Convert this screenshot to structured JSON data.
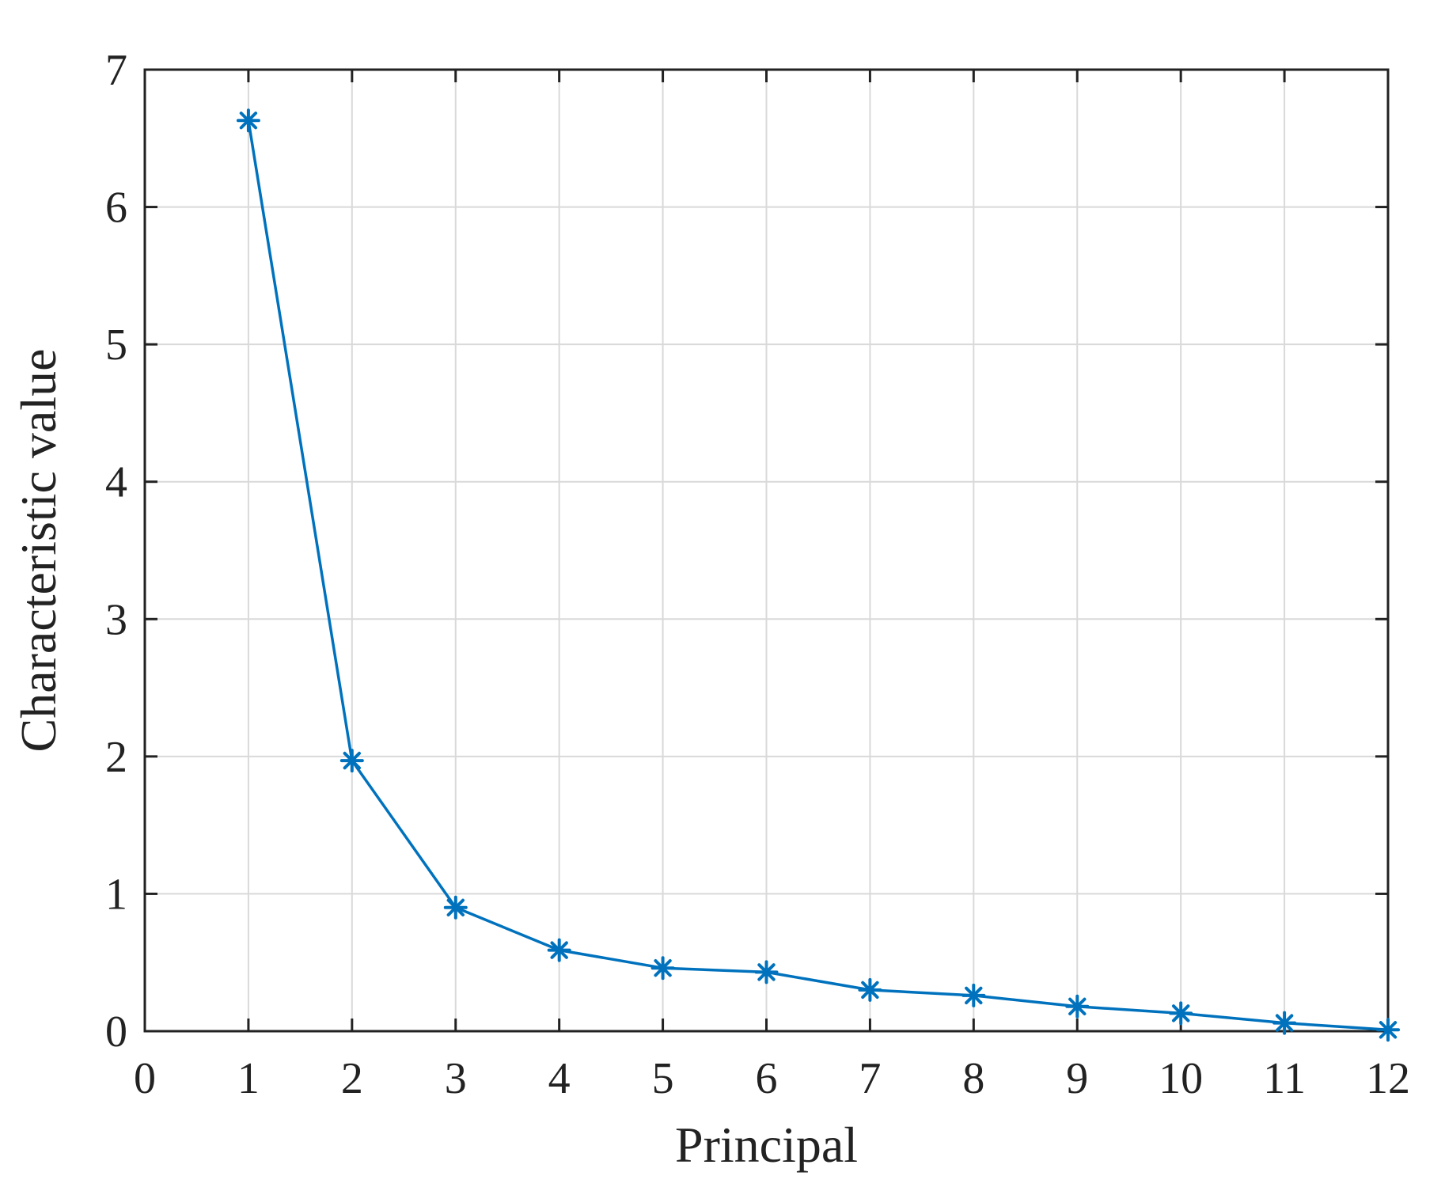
{
  "chart_data": {
    "type": "line",
    "title": "",
    "xlabel": "Principal",
    "ylabel": "Characteristic value",
    "xlim": [
      0,
      12
    ],
    "ylim": [
      0,
      7
    ],
    "xticks": [
      "0",
      "1",
      "2",
      "3",
      "4",
      "5",
      "6",
      "7",
      "8",
      "9",
      "10",
      "11",
      "12"
    ],
    "yticks": [
      "0",
      "1",
      "2",
      "3",
      "4",
      "5",
      "6",
      "7"
    ],
    "grid": true,
    "legend": "none",
    "series": [
      {
        "color": "#0072BD",
        "marker": "asterisk",
        "x": [
          1,
          2,
          3,
          4,
          5,
          6,
          7,
          8,
          9,
          10,
          11,
          12
        ],
        "y": [
          6.63,
          1.97,
          0.9,
          0.59,
          0.46,
          0.43,
          0.3,
          0.26,
          0.18,
          0.13,
          0.06,
          0.01
        ]
      }
    ]
  }
}
